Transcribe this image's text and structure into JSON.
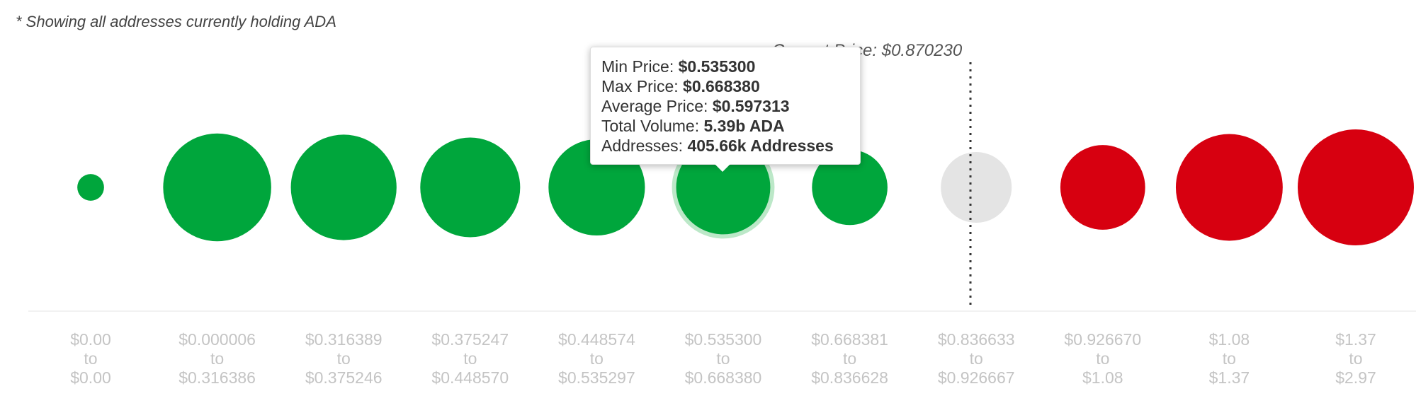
{
  "note": "* Showing all addresses currently holding ADA",
  "current_price": {
    "label": "Current Price",
    "value": "$0.870230"
  },
  "colors": {
    "in_the_money": "#00a63c",
    "at_the_money": "#e3e3e3",
    "out_of_the_money": "#d70010",
    "highlight_ring": "#bce8c8",
    "tick_label": "#c4c4c4"
  },
  "chart_data": {
    "type": "scatter",
    "encoding": "bubble size = relative total volume",
    "categories": [
      {
        "from": "$0.00",
        "to": "$0.00",
        "status": "in",
        "size": 0.23
      },
      {
        "from": "$0.000006",
        "to": "$0.316386",
        "status": "in",
        "size": 0.93
      },
      {
        "from": "$0.316389",
        "to": "$0.375246",
        "status": "in",
        "size": 0.91
      },
      {
        "from": "$0.375247",
        "to": "$0.448570",
        "status": "in",
        "size": 0.86
      },
      {
        "from": "$0.448574",
        "to": "$0.535297",
        "status": "in",
        "size": 0.83
      },
      {
        "from": "$0.535300",
        "to": "$0.668380",
        "status": "in",
        "size": 0.81,
        "highlighted": true
      },
      {
        "from": "$0.668381",
        "to": "$0.836628",
        "status": "in",
        "size": 0.65
      },
      {
        "from": "$0.836633",
        "to": "$0.926667",
        "status": "at",
        "size": 0.61
      },
      {
        "from": "$0.926670",
        "to": "$1.08",
        "status": "out",
        "size": 0.73
      },
      {
        "from": "$1.08",
        "to": "$1.37",
        "status": "out",
        "size": 0.92
      },
      {
        "from": "$1.37",
        "to": "$2.97",
        "status": "out",
        "size": 1.0
      }
    ],
    "range_connector": "to",
    "current_price_position": "$0.870230"
  },
  "tooltip": {
    "min_label": "Min Price: ",
    "min_value": "$0.535300",
    "max_label": "Max Price: ",
    "max_value": "$0.668380",
    "avg_label": "Average Price: ",
    "avg_value": "$0.597313",
    "vol_label": "Total Volume: ",
    "vol_value": "5.39b ADA",
    "addr_label": "Addresses: ",
    "addr_value": "405.66k Addresses"
  }
}
